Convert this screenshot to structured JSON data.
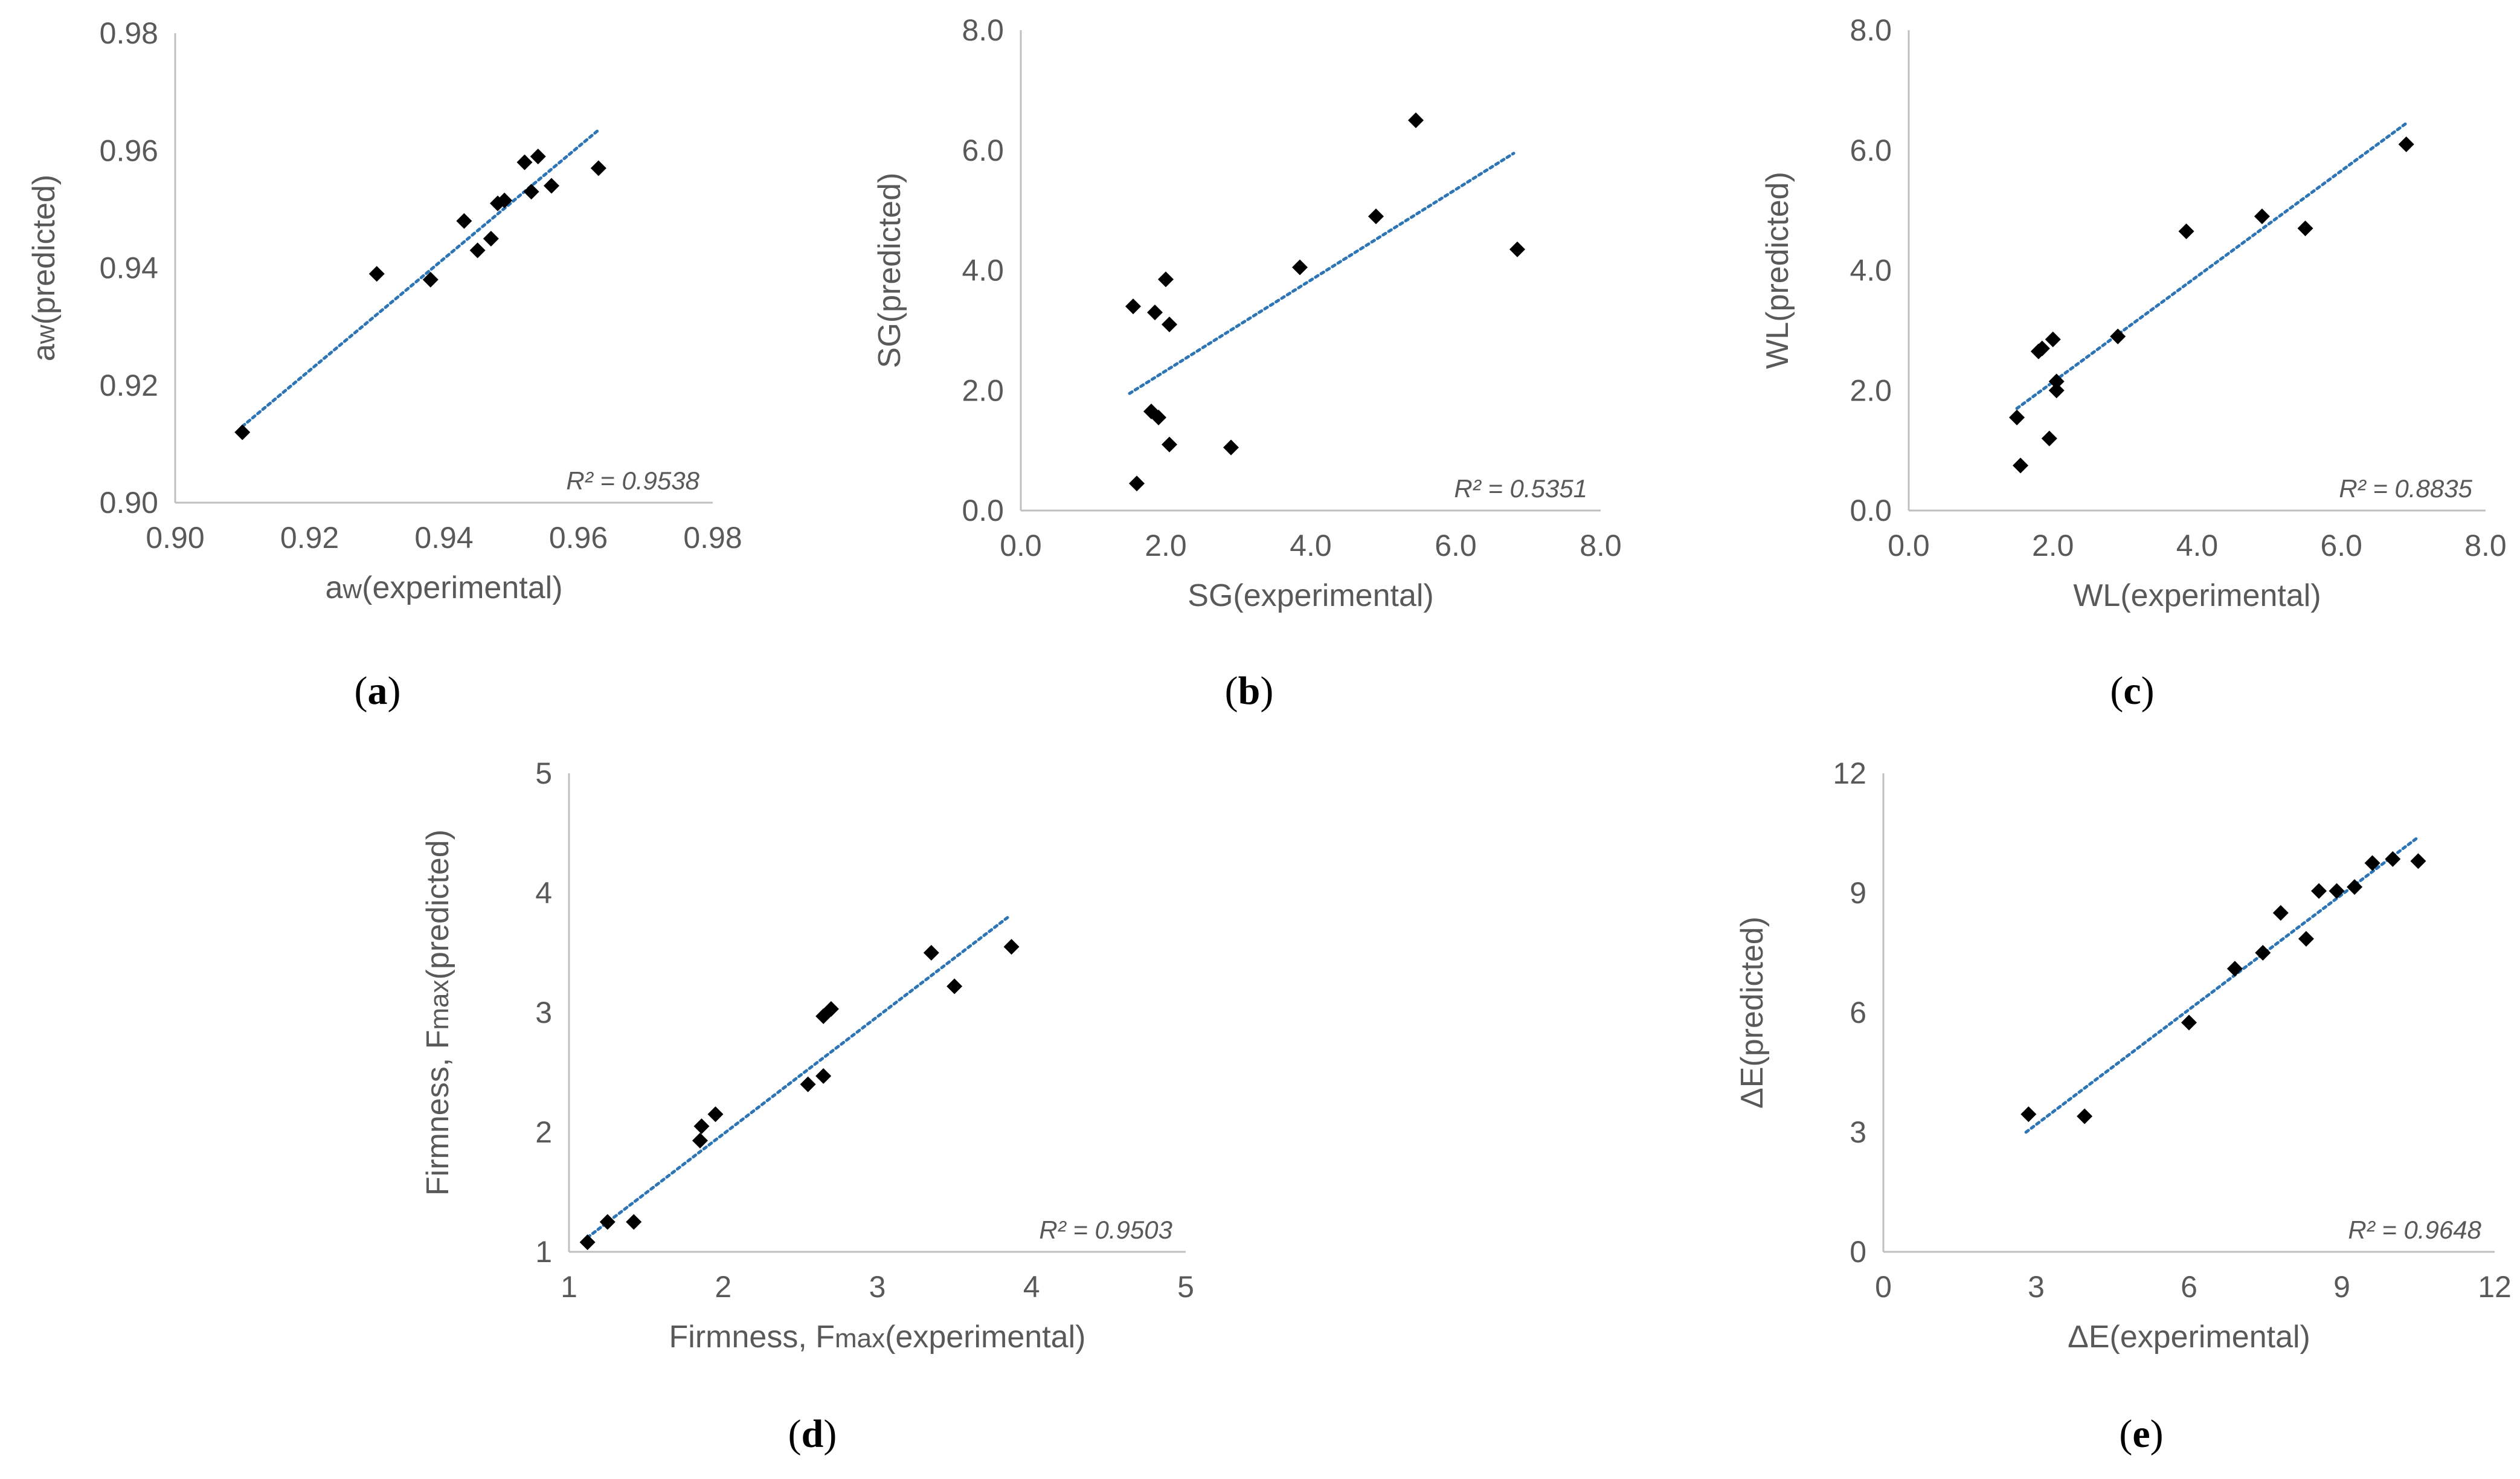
{
  "colors": {
    "marker": "#000000",
    "trendline": "#2E75B6",
    "axis": "#BFBFBF",
    "text": "#595959"
  },
  "chart_data": [
    {
      "id": "a",
      "type": "scatter",
      "panel_label": "a",
      "xlabel": {
        "main": "a",
        "sub": "w",
        "rest": "(experimental)"
      },
      "ylabel": {
        "main": "a",
        "sub": "w",
        "rest": "(predicted)"
      },
      "xlim": [
        0.9,
        0.98
      ],
      "ylim": [
        0.9,
        0.98
      ],
      "xticks": [
        0.9,
        0.92,
        0.94,
        0.96,
        0.98
      ],
      "yticks": [
        0.9,
        0.92,
        0.94,
        0.96,
        0.98
      ],
      "tick_labels_x": [
        "0.90",
        "0.92",
        "0.94",
        "0.96",
        "0.98"
      ],
      "tick_labels_y": [
        "0.90",
        "0.92",
        "0.94",
        "0.96",
        "0.98"
      ],
      "r2": "R² = 0.9538",
      "trendline": {
        "x": [
          0.91,
          0.963
        ],
        "y": [
          0.913,
          0.9635
        ]
      },
      "points": [
        {
          "x": 0.91,
          "y": 0.912
        },
        {
          "x": 0.93,
          "y": 0.939
        },
        {
          "x": 0.938,
          "y": 0.938
        },
        {
          "x": 0.943,
          "y": 0.948
        },
        {
          "x": 0.945,
          "y": 0.943
        },
        {
          "x": 0.947,
          "y": 0.945
        },
        {
          "x": 0.948,
          "y": 0.951
        },
        {
          "x": 0.949,
          "y": 0.9515
        },
        {
          "x": 0.952,
          "y": 0.958
        },
        {
          "x": 0.953,
          "y": 0.953
        },
        {
          "x": 0.954,
          "y": 0.959
        },
        {
          "x": 0.956,
          "y": 0.954
        },
        {
          "x": 0.963,
          "y": 0.957
        }
      ]
    },
    {
      "id": "b",
      "type": "scatter",
      "panel_label": "b",
      "xlabel": {
        "main": "SG(experimental)"
      },
      "ylabel": {
        "main": "SG(predicted)"
      },
      "xlim": [
        0,
        8
      ],
      "ylim": [
        0,
        8
      ],
      "xticks": [
        0,
        2,
        4,
        6,
        8
      ],
      "yticks": [
        0,
        2,
        4,
        6,
        8
      ],
      "tick_labels_x": [
        "0.0",
        "2.0",
        "4.0",
        "6.0",
        "8.0"
      ],
      "tick_labels_y": [
        "0.0",
        "2.0",
        "4.0",
        "6.0",
        "8.0"
      ],
      "r2": "R² = 0.5351",
      "trendline": {
        "x": [
          1.5,
          6.8
        ],
        "y": [
          1.95,
          5.95
        ]
      },
      "points": [
        {
          "x": 1.55,
          "y": 3.4
        },
        {
          "x": 1.6,
          "y": 0.45
        },
        {
          "x": 1.8,
          "y": 1.65
        },
        {
          "x": 1.85,
          "y": 3.3
        },
        {
          "x": 1.9,
          "y": 1.55
        },
        {
          "x": 2.0,
          "y": 3.85
        },
        {
          "x": 2.05,
          "y": 3.1
        },
        {
          "x": 2.05,
          "y": 1.1
        },
        {
          "x": 2.9,
          "y": 1.05
        },
        {
          "x": 3.85,
          "y": 4.05
        },
        {
          "x": 4.9,
          "y": 4.9
        },
        {
          "x": 5.45,
          "y": 6.5
        },
        {
          "x": 6.85,
          "y": 4.35
        }
      ]
    },
    {
      "id": "c",
      "type": "scatter",
      "panel_label": "c",
      "xlabel": {
        "main": "WL(experimental)"
      },
      "ylabel": {
        "main": "WL(predicted)"
      },
      "xlim": [
        0,
        8
      ],
      "ylim": [
        0,
        8
      ],
      "xticks": [
        0,
        2,
        4,
        6,
        8
      ],
      "yticks": [
        0,
        2,
        4,
        6,
        8
      ],
      "tick_labels_x": [
        "0.0",
        "2.0",
        "4.0",
        "6.0",
        "8.0"
      ],
      "tick_labels_y": [
        "0.0",
        "2.0",
        "4.0",
        "6.0",
        "8.0"
      ],
      "r2": "R² = 0.8835",
      "trendline": {
        "x": [
          1.5,
          6.9
        ],
        "y": [
          1.7,
          6.45
        ]
      },
      "points": [
        {
          "x": 1.5,
          "y": 1.55
        },
        {
          "x": 1.55,
          "y": 0.75
        },
        {
          "x": 1.8,
          "y": 2.65
        },
        {
          "x": 1.85,
          "y": 2.7
        },
        {
          "x": 1.95,
          "y": 1.2
        },
        {
          "x": 2.0,
          "y": 2.85
        },
        {
          "x": 2.05,
          "y": 2.15
        },
        {
          "x": 2.05,
          "y": 2.0
        },
        {
          "x": 2.9,
          "y": 2.9
        },
        {
          "x": 3.85,
          "y": 4.65
        },
        {
          "x": 4.9,
          "y": 4.9
        },
        {
          "x": 5.5,
          "y": 4.7
        },
        {
          "x": 6.9,
          "y": 6.1
        }
      ]
    },
    {
      "id": "d",
      "type": "scatter",
      "panel_label": "d",
      "xlabel": {
        "main": "Firmness, F",
        "sub": "max",
        "rest": "(experimental)"
      },
      "ylabel": {
        "main": "Firmness, F",
        "sub": "max",
        "rest": "(predicted)"
      },
      "xlim": [
        1,
        5
      ],
      "ylim": [
        1,
        5
      ],
      "xticks": [
        1,
        2,
        3,
        4,
        5
      ],
      "yticks": [
        1,
        2,
        3,
        4,
        5
      ],
      "tick_labels_x": [
        "1",
        "2",
        "3",
        "4",
        "5"
      ],
      "tick_labels_y": [
        "1",
        "2",
        "3",
        "4",
        "5"
      ],
      "r2": "R² = 0.9503",
      "trendline": {
        "x": [
          1.12,
          3.85
        ],
        "y": [
          1.12,
          3.8
        ]
      },
      "points": [
        {
          "x": 1.12,
          "y": 1.08
        },
        {
          "x": 1.25,
          "y": 1.25
        },
        {
          "x": 1.42,
          "y": 1.25
        },
        {
          "x": 1.85,
          "y": 1.93
        },
        {
          "x": 1.86,
          "y": 2.05
        },
        {
          "x": 1.95,
          "y": 2.15
        },
        {
          "x": 2.55,
          "y": 2.4
        },
        {
          "x": 2.65,
          "y": 2.47
        },
        {
          "x": 2.65,
          "y": 2.97
        },
        {
          "x": 2.7,
          "y": 3.03
        },
        {
          "x": 3.35,
          "y": 3.5
        },
        {
          "x": 3.5,
          "y": 3.22
        },
        {
          "x": 3.87,
          "y": 3.55
        }
      ]
    },
    {
      "id": "e",
      "type": "scatter",
      "panel_label": "e",
      "xlabel": {
        "main": "ΔE(experimental)"
      },
      "ylabel": {
        "main": "ΔE(predicted)"
      },
      "xlim": [
        0,
        12
      ],
      "ylim": [
        0,
        12
      ],
      "xticks": [
        0,
        3,
        6,
        9,
        12
      ],
      "yticks": [
        0,
        3,
        6,
        9,
        12
      ],
      "tick_labels_x": [
        "0",
        "3",
        "6",
        "9",
        "12"
      ],
      "tick_labels_y": [
        "0",
        "3",
        "6",
        "9",
        "12"
      ],
      "r2": "R² = 0.9648",
      "trendline": {
        "x": [
          2.8,
          10.5
        ],
        "y": [
          3.0,
          10.4
        ]
      },
      "points": [
        {
          "x": 2.85,
          "y": 3.45
        },
        {
          "x": 3.95,
          "y": 3.4
        },
        {
          "x": 6.0,
          "y": 5.75
        },
        {
          "x": 6.9,
          "y": 7.1
        },
        {
          "x": 7.45,
          "y": 7.5
        },
        {
          "x": 7.8,
          "y": 8.5
        },
        {
          "x": 8.3,
          "y": 7.85
        },
        {
          "x": 8.55,
          "y": 9.05
        },
        {
          "x": 8.9,
          "y": 9.05
        },
        {
          "x": 9.25,
          "y": 9.15
        },
        {
          "x": 9.6,
          "y": 9.75
        },
        {
          "x": 10.0,
          "y": 9.85
        },
        {
          "x": 10.5,
          "y": 9.8
        }
      ]
    }
  ]
}
